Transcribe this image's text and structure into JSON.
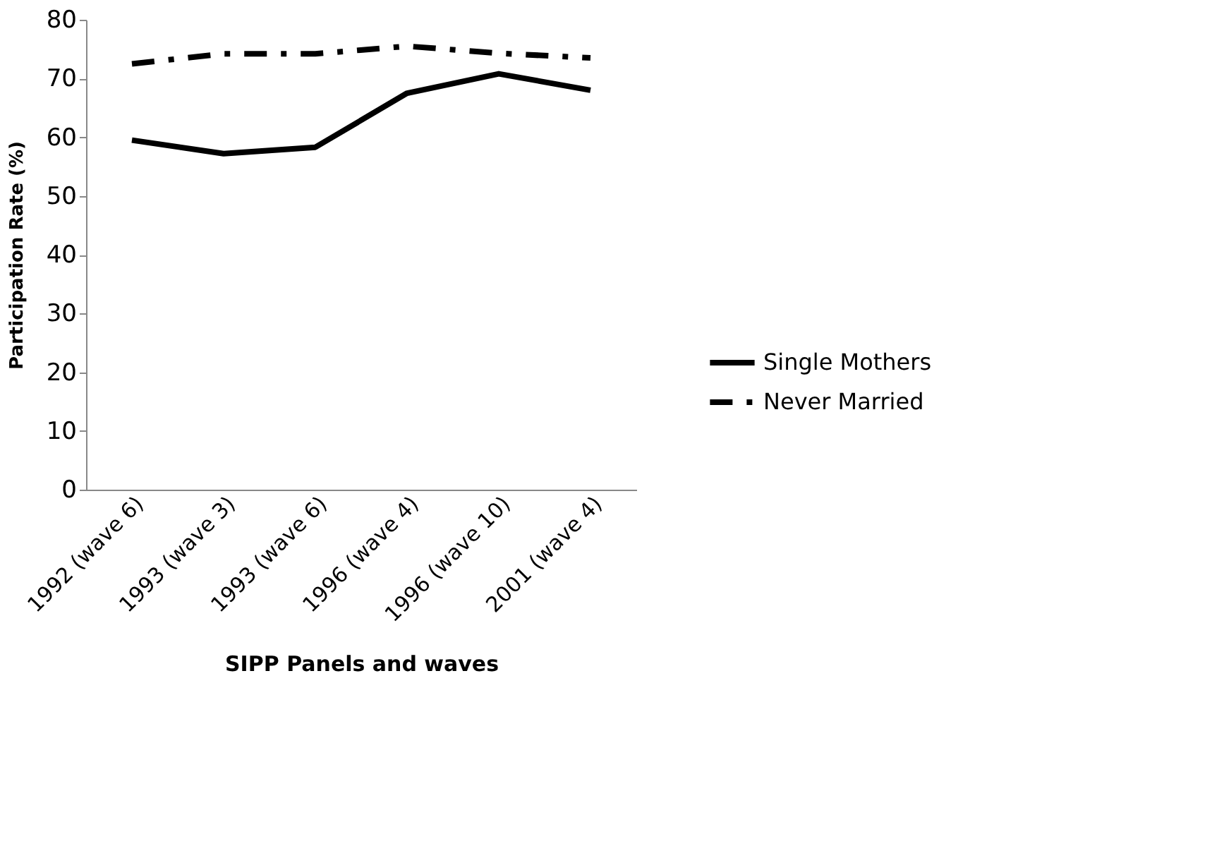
{
  "chart_data": {
    "type": "line",
    "xlabel": "SIPP Panels and waves",
    "ylabel": "Participation Rate (%)",
    "categories": [
      "1992 (wave 6)",
      "1993 (wave 3)",
      "1993 (wave 6)",
      "1996 (wave 4)",
      "1996 (wave 10)",
      "2001 (wave 4)"
    ],
    "series": [
      {
        "name": "Single Mothers",
        "color": "#000000",
        "line_style": "solid",
        "values": [
          59.5,
          57.2,
          58.3,
          67.5,
          70.8,
          68.0
        ]
      },
      {
        "name": "Never Married",
        "color": "#000000",
        "line_style": "dashed",
        "values": [
          72.5,
          74.2,
          74.2,
          75.5,
          74.3,
          73.5
        ]
      }
    ],
    "ylim": [
      0,
      80
    ],
    "yticks": [
      0,
      10,
      20,
      30,
      40,
      50,
      60,
      70,
      80
    ],
    "grid": false,
    "legend": "right",
    "marker": "none"
  }
}
